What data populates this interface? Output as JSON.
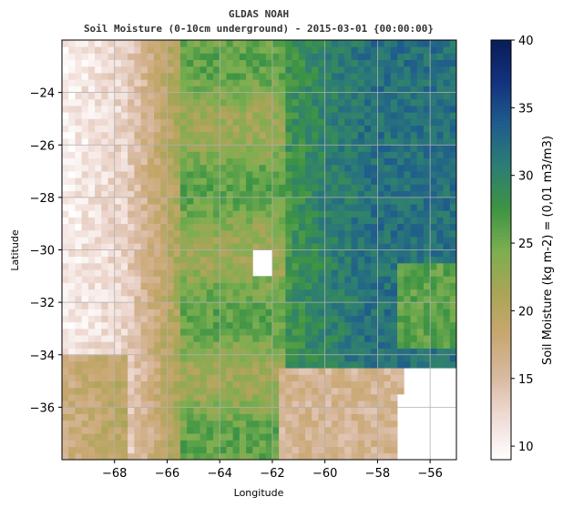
{
  "chart_data": {
    "type": "heatmap",
    "title": "GLDAS NOAH",
    "subtitle": "Soil Moisture (0-10cm underground) - 2015-03-01 {00:00:00}",
    "xlabel": "Longitude",
    "ylabel": "Latitude",
    "xlim": [
      -70.0,
      -55.0
    ],
    "ylim": [
      -38.0,
      -22.0
    ],
    "x_ticks": [
      -68,
      -66,
      -64,
      -62,
      -60,
      -58,
      -56
    ],
    "x_tick_labels": [
      "−68",
      "−66",
      "−64",
      "−62",
      "−60",
      "−58",
      "−56"
    ],
    "y_ticks": [
      -24,
      -26,
      -28,
      -30,
      -32,
      -34,
      -36
    ],
    "y_tick_labels": [
      "−24",
      "−26",
      "−28",
      "−30",
      "−32",
      "−34",
      "−36"
    ],
    "grid": true,
    "colorbar": {
      "label": "Soil Moisture (kg m-2) = (0,01 m3/m3)",
      "range": [
        9,
        40
      ],
      "ticks": [
        10,
        15,
        20,
        25,
        30,
        35,
        40
      ],
      "tick_labels": [
        "10",
        "15",
        "20",
        "25",
        "30",
        "35",
        "40"
      ],
      "colormap": [
        "#ffffff",
        "#f0dcd6",
        "#d8b9a0",
        "#c8a770",
        "#a9a557",
        "#7cae50",
        "#3d9444",
        "#2d7e74",
        "#1f5d8c",
        "#15327f",
        "#081d58"
      ]
    },
    "grid_resolution_deg": 0.25,
    "description_regions": [
      {
        "lon": [
          -70,
          -67
        ],
        "lat": [
          -38,
          -22
        ],
        "approx_value": 12
      },
      {
        "lon": [
          -67,
          -62
        ],
        "lat": [
          -38,
          -22
        ],
        "approx_value": 24
      },
      {
        "lon": [
          -62,
          -55
        ],
        "lat": [
          -34,
          -22
        ],
        "approx_value": 30
      },
      {
        "lon": [
          -62,
          -55
        ],
        "lat": [
          -38,
          -34
        ],
        "approx_value": 17
      }
    ]
  }
}
